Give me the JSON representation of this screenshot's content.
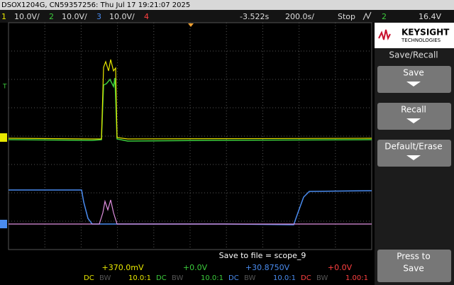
{
  "header": {
    "title": "DSOX1204G, CN59357256: Thu Jul 17 19:21:07 2025"
  },
  "status_bar": {
    "channels": [
      {
        "number": "1",
        "scale": "10.0V/"
      },
      {
        "number": "2",
        "scale": "10.0V/"
      },
      {
        "number": "3",
        "scale": "10.0V/"
      },
      {
        "number": "4"
      }
    ],
    "time_offset": "-3.522s",
    "time_scale": "200.0s/",
    "run_state": "Stop",
    "trigger_source": "2",
    "trigger_level": "16.4V"
  },
  "brand": {
    "name": "KEYSIGHT",
    "subtitle": "TECHNOLOGIES"
  },
  "menu": {
    "title": "Save/Recall",
    "buttons": [
      {
        "label": "Save"
      },
      {
        "label": "Recall"
      },
      {
        "label": "Default/Erase"
      }
    ],
    "action": [
      "Press to",
      "Save"
    ]
  },
  "save_message": "Save to file = scope_9",
  "channel_info": [
    {
      "offset": "+370.0mV",
      "coupling": "DC",
      "bw": "BW",
      "probe": "10.0:1"
    },
    {
      "offset": "+0.0V",
      "coupling": "DC",
      "bw": "BW",
      "probe": "10.0:1"
    },
    {
      "offset": "+30.8750V",
      "coupling": "DC",
      "bw": "BW",
      "probe": "10.0:1"
    },
    {
      "offset": "+0.0V",
      "coupling": "DC",
      "bw": "BW",
      "probe": "1.00:1"
    }
  ]
}
